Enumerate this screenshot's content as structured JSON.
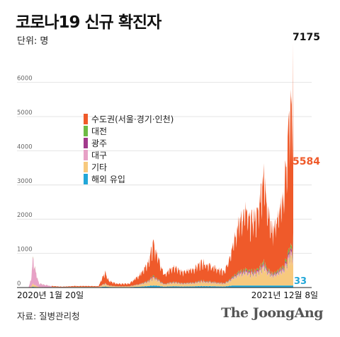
{
  "header": {
    "title": "코로나19 신규 확진자",
    "unit": "단위: 명"
  },
  "footer": {
    "source": "자료: 질병관리청",
    "brand": "The JoongAng"
  },
  "chart_data": {
    "type": "area",
    "stacked": true,
    "ylim": [
      0,
      7500
    ],
    "y_ticks": [
      0,
      1000,
      2000,
      3000,
      4000,
      5000,
      6000
    ],
    "x_range": [
      "2020-01-20",
      "2021-12-08"
    ],
    "x_labels": [
      "2020년 1월 20일",
      "2021년 12월 8일"
    ],
    "grid": true,
    "legend_position": "upper-left inside plot",
    "series": [
      {
        "name": "해외 유입",
        "color": "#22a7d8"
      },
      {
        "name": "기타",
        "color": "#f7c97e"
      },
      {
        "name": "대구",
        "color": "#e7a1c6"
      },
      {
        "name": "광주",
        "color": "#a23a8c"
      },
      {
        "name": "대전",
        "color": "#6dbb45"
      },
      {
        "name": "수도권(서울·경기·인천)",
        "color": "#ef5a2a"
      }
    ],
    "legend_order": [
      "수도권(서울·경기·인천)",
      "대전",
      "광주",
      "대구",
      "기타",
      "해외 유입"
    ],
    "total_points": [
      [
        "2020-01-20",
        0
      ],
      [
        "2020-02-18",
        10
      ],
      [
        "2020-02-24",
        250
      ],
      [
        "2020-02-29",
        909
      ],
      [
        "2020-03-03",
        650
      ],
      [
        "2020-03-08",
        400
      ],
      [
        "2020-03-15",
        120
      ],
      [
        "2020-04-10",
        50
      ],
      [
        "2020-05-10",
        25
      ],
      [
        "2020-06-10",
        45
      ],
      [
        "2020-08-10",
        40
      ],
      [
        "2020-08-18",
        250
      ],
      [
        "2020-08-27",
        440
      ],
      [
        "2020-09-05",
        200
      ],
      [
        "2020-09-25",
        110
      ],
      [
        "2020-10-25",
        110
      ],
      [
        "2020-11-20",
        360
      ],
      [
        "2020-12-10",
        700
      ],
      [
        "2020-12-25",
        1240
      ],
      [
        "2021-01-05",
        900
      ],
      [
        "2021-01-20",
        400
      ],
      [
        "2021-02-15",
        600
      ],
      [
        "2021-03-10",
        450
      ],
      [
        "2021-04-05",
        550
      ],
      [
        "2021-04-25",
        750
      ],
      [
        "2021-05-20",
        600
      ],
      [
        "2021-06-20",
        450
      ],
      [
        "2021-07-01",
        800
      ],
      [
        "2021-07-12",
        1400
      ],
      [
        "2021-07-25",
        1850
      ],
      [
        "2021-08-11",
        2223
      ],
      [
        "2021-08-20",
        1900
      ],
      [
        "2021-09-10",
        2100
      ],
      [
        "2021-09-25",
        3273
      ],
      [
        "2021-10-05",
        2400
      ],
      [
        "2021-10-15",
        1650
      ],
      [
        "2021-10-30",
        2000
      ],
      [
        "2021-11-06",
        2300
      ],
      [
        "2021-11-12",
        2400
      ],
      [
        "2021-11-18",
        3300
      ],
      [
        "2021-11-24",
        4100
      ],
      [
        "2021-11-30",
        5100
      ],
      [
        "2021-12-04",
        5300
      ],
      [
        "2021-12-06",
        4300
      ],
      [
        "2021-12-07",
        6500
      ],
      [
        "2021-12-08",
        7175
      ]
    ],
    "annotations": {
      "last_total": "7175",
      "last_capital": "5584",
      "last_overseas": "33"
    }
  }
}
